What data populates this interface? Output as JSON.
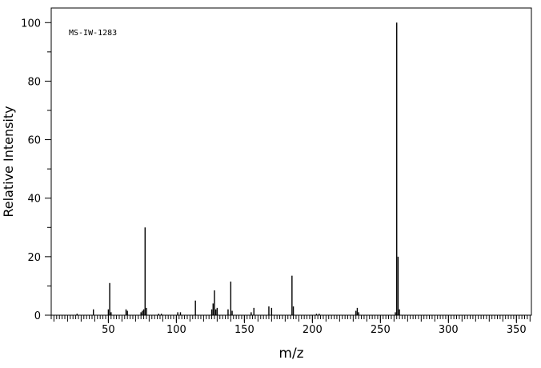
{
  "chart_data": {
    "type": "bar",
    "title": "",
    "annotation": "MS-IW-1283",
    "xlabel": "m/z",
    "ylabel": "Relative Intensity",
    "xlim": [
      8,
      361
    ],
    "ylim": [
      0,
      105
    ],
    "x_ticks": [
      50,
      100,
      150,
      200,
      250,
      300,
      350
    ],
    "y_ticks": [
      0,
      20,
      40,
      60,
      80,
      100
    ],
    "grid": false,
    "legend": "none",
    "peaks": [
      {
        "mz": 27,
        "intensity": 0.5
      },
      {
        "mz": 39,
        "intensity": 2.0
      },
      {
        "mz": 50,
        "intensity": 2.0
      },
      {
        "mz": 51,
        "intensity": 11.0
      },
      {
        "mz": 52,
        "intensity": 1.0
      },
      {
        "mz": 63,
        "intensity": 2.0
      },
      {
        "mz": 64,
        "intensity": 1.5
      },
      {
        "mz": 74,
        "intensity": 1.0
      },
      {
        "mz": 75,
        "intensity": 1.5
      },
      {
        "mz": 76,
        "intensity": 2.0
      },
      {
        "mz": 77,
        "intensity": 30.0
      },
      {
        "mz": 78,
        "intensity": 2.5
      },
      {
        "mz": 87,
        "intensity": 0.5
      },
      {
        "mz": 89,
        "intensity": 0.5
      },
      {
        "mz": 101,
        "intensity": 1.0
      },
      {
        "mz": 103,
        "intensity": 1.0
      },
      {
        "mz": 114,
        "intensity": 5.0
      },
      {
        "mz": 126,
        "intensity": 2.0
      },
      {
        "mz": 127,
        "intensity": 4.0
      },
      {
        "mz": 128,
        "intensity": 8.5
      },
      {
        "mz": 129,
        "intensity": 2.0
      },
      {
        "mz": 130,
        "intensity": 2.5
      },
      {
        "mz": 138,
        "intensity": 2.0
      },
      {
        "mz": 140,
        "intensity": 11.5
      },
      {
        "mz": 141,
        "intensity": 1.5
      },
      {
        "mz": 155,
        "intensity": 1.0
      },
      {
        "mz": 157,
        "intensity": 2.5
      },
      {
        "mz": 168,
        "intensity": 3.0
      },
      {
        "mz": 170,
        "intensity": 2.5
      },
      {
        "mz": 185,
        "intensity": 13.5
      },
      {
        "mz": 186,
        "intensity": 3.0
      },
      {
        "mz": 203,
        "intensity": 0.5
      },
      {
        "mz": 205,
        "intensity": 0.5
      },
      {
        "mz": 232,
        "intensity": 1.5
      },
      {
        "mz": 233,
        "intensity": 2.5
      },
      {
        "mz": 234,
        "intensity": 1.0
      },
      {
        "mz": 261,
        "intensity": 1.0
      },
      {
        "mz": 262,
        "intensity": 100.0
      },
      {
        "mz": 263,
        "intensity": 20.0
      },
      {
        "mz": 264,
        "intensity": 2.0
      }
    ]
  }
}
